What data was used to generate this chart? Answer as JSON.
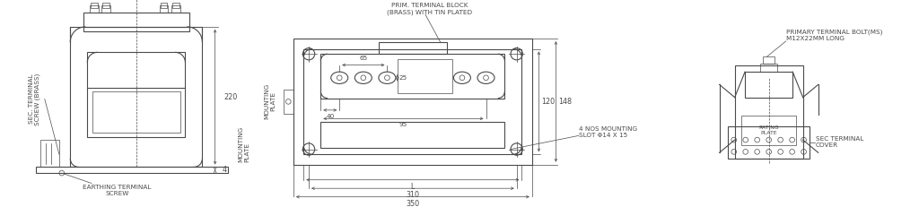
{
  "bg_color": "#ffffff",
  "lc": "#4a4a4a",
  "tlw": 0.5,
  "mlw": 0.8,
  "fs": 5.2,
  "fm": 5.8,
  "annotations": {
    "dim_220": "220",
    "dim_4": "4",
    "dim_65": "65",
    "dim_25": "25",
    "dim_40": "40",
    "dim_95": "95",
    "dim_L": "L",
    "dim_310": "310",
    "dim_350": "350",
    "dim_120": "120",
    "dim_148": "148",
    "label_sec_terminal": "SEC. TERMINAL\nSCREW (BRASS)",
    "label_earthing": "EARTHING TERMINAL\nSCREW",
    "label_mounting_plate": "MOUNTING\nPLATE",
    "label_prim_terminal": "PRIM. TERMINAL BLOCK\n(BRASS) WITH TIN PLATED",
    "label_4nos": "4 NOS MOUNTING\nSLOT Φ14 X 15",
    "label_prim_bolt": "PRIMARY TERMINAL BOLT(MS)\nM12X22MM LONG",
    "label_rating_plate": "RATING\nPLATE",
    "label_sec_cover": "SEC TERMINAL\nCOVER"
  }
}
